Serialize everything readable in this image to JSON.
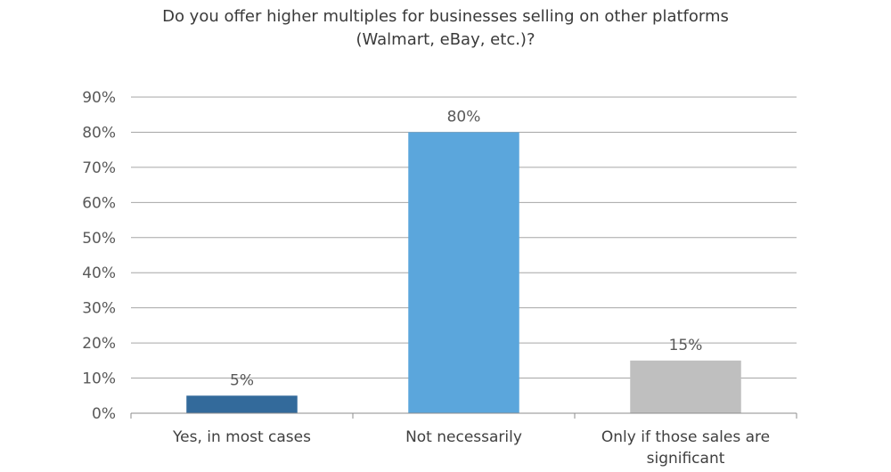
{
  "chart_data": {
    "type": "bar",
    "title_lines": [
      "Do you offer higher multiples for businesses selling on other platforms",
      "(Walmart, eBay, etc.)?"
    ],
    "categories": [
      [
        "Yes, in most cases"
      ],
      [
        "Not necessarily"
      ],
      [
        "Only if those sales are",
        "significant"
      ]
    ],
    "values": [
      5,
      80,
      15
    ],
    "data_labels": [
      "5%",
      "80%",
      "15%"
    ],
    "colors": [
      "#336a9b",
      "#5ba6dc",
      "#bfbfbf"
    ],
    "ylim": [
      0,
      90
    ],
    "yticks": [
      0,
      10,
      20,
      30,
      40,
      50,
      60,
      70,
      80,
      90
    ],
    "ytick_labels": [
      "0%",
      "10%",
      "20%",
      "30%",
      "40%",
      "50%",
      "60%",
      "70%",
      "80%",
      "90%"
    ],
    "grid": true,
    "grid_color": "#a6a6a6"
  }
}
